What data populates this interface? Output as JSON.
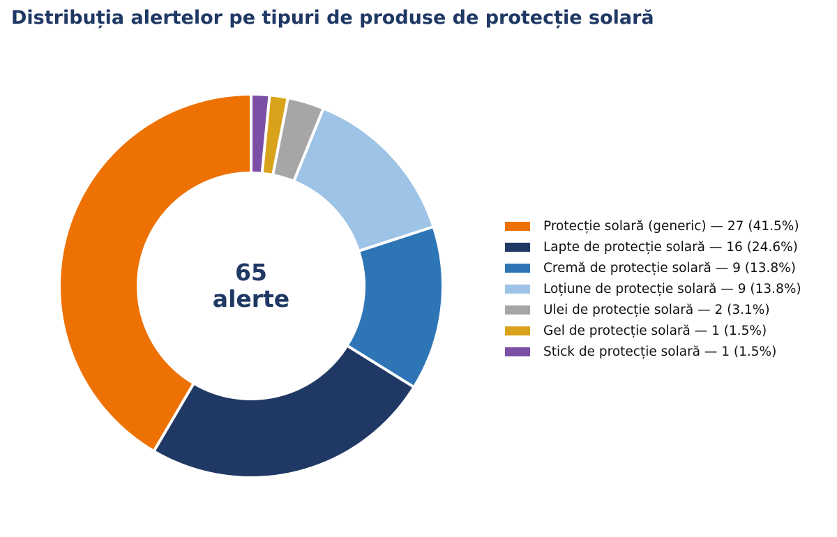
{
  "chart_data": {
    "type": "pie",
    "title": "Distribuția alertelor pe tipuri de produse de protecție solară",
    "center_label": {
      "value": "65",
      "unit": "alerte"
    },
    "donut": true,
    "legend_position": "right",
    "total": 65,
    "slices": [
      {
        "label": "Protecție solară (generic)",
        "value": 27,
        "percent": 41.5,
        "color": "#ed7203",
        "legend_text": "Protecție solară (generic) — 27 (41.5%)"
      },
      {
        "label": "Lapte de protecție solară",
        "value": 16,
        "percent": 24.6,
        "color": "#1f3864",
        "legend_text": "Lapte de protecție solară — 16 (24.6%)"
      },
      {
        "label": "Cremă de protecție solară",
        "value": 9,
        "percent": 13.8,
        "color": "#2e75b6",
        "legend_text": "Cremă de protecție solară — 9 (13.8%)"
      },
      {
        "label": "Loțiune de protecție solară",
        "value": 9,
        "percent": 13.8,
        "color": "#9dc3e6",
        "legend_text": "Loțiune de protecție solară — 9 (13.8%)"
      },
      {
        "label": "Ulei de protecție solară",
        "value": 2,
        "percent": 3.1,
        "color": "#a6a6a6",
        "legend_text": "Ulei de protecție solară — 2 (3.1%)"
      },
      {
        "label": "Gel de protecție solară",
        "value": 1,
        "percent": 1.5,
        "color": "#d9a21b",
        "legend_text": "Gel de protecție solară — 1 (1.5%)"
      },
      {
        "label": "Stick de protecție solară",
        "value": 1,
        "percent": 1.5,
        "color": "#7b4fa6",
        "legend_text": "Stick de protecție solară — 1 (1.5%)"
      }
    ]
  }
}
